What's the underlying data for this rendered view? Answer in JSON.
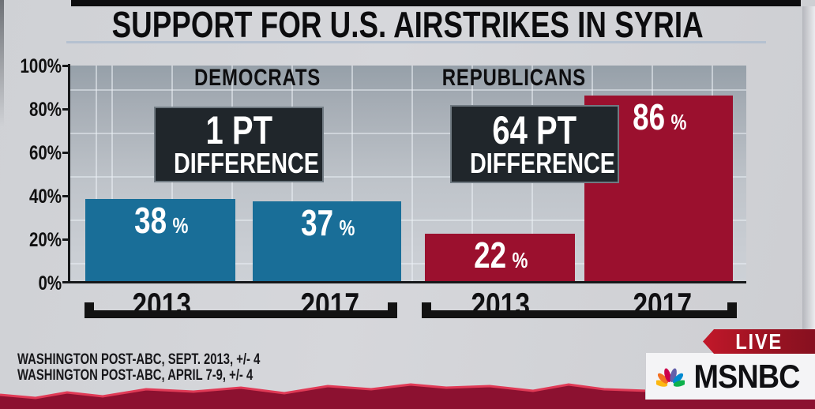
{
  "title": "SUPPORT FOR U.S. AIRSTRIKES IN SYRIA",
  "chart_data": {
    "type": "bar",
    "title": "SUPPORT FOR U.S. AIRSTRIKES IN SYRIA",
    "ylim": [
      0,
      100
    ],
    "yticks": [
      "100%",
      "80%",
      "60%",
      "40%",
      "20%",
      "0%"
    ],
    "grid": true,
    "unit": "%",
    "categories": [
      "2013",
      "2017"
    ],
    "groups": [
      {
        "party": "DEMOCRATS",
        "difference": "1 PT",
        "difference_word": "DIFFERENCE",
        "color": "#196E98",
        "bars": [
          {
            "year": "2013",
            "value": 38,
            "display": "38"
          },
          {
            "year": "2017",
            "value": 37,
            "display": "37"
          }
        ]
      },
      {
        "party": "REPUBLICANS",
        "difference": "64 PT",
        "difference_word": "DIFFERENCE",
        "color": "#9B102E",
        "bars": [
          {
            "year": "2013",
            "value": 22,
            "display": "22"
          },
          {
            "year": "2017",
            "value": 86,
            "display": "86"
          }
        ]
      }
    ]
  },
  "sources": [
    "WASHINGTON POST-ABC, SEPT. 2013, +/- 4",
    "WASHINGTON POST-ABC, APRIL 7-9, +/- 4"
  ],
  "broadcast": {
    "live_label": "LIVE",
    "network": "MSNBC",
    "logo_icon": "nbc-peacock-icon",
    "live_color": "#B01422",
    "torn_edge_color": "#8C1130",
    "torn_edge_highlight": "#E03A56"
  }
}
